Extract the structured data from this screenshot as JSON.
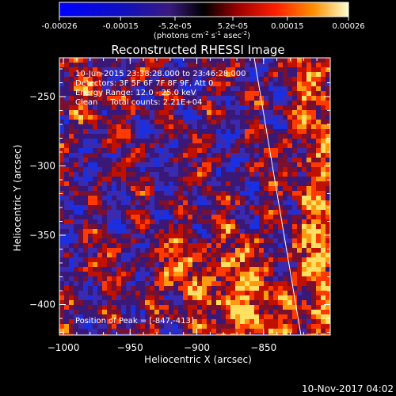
{
  "colorbar": {
    "ticks": [
      "-0.00026",
      "-0.00015",
      "-5.2e-05",
      "5.2e-05",
      "0.00015",
      "0.00026"
    ],
    "tick_values": [
      -0.00026,
      -0.00015,
      -5.2e-05,
      5.2e-05,
      0.00015,
      0.00026
    ],
    "range": [
      -0.00026,
      0.00026
    ],
    "units_prefix": "(photons cm",
    "units_exp1": "-2",
    "units_mid": " s",
    "units_exp2": "-1",
    "units_mid2": " asec",
    "units_exp3": "-2",
    "units_suffix": ")"
  },
  "chart_data": {
    "type": "heatmap",
    "title": "Reconstructed RHESSI Image",
    "xlabel": "Heliocentric X (arcsec)",
    "ylabel": "Heliocentric Y (arcsec)",
    "xlim": [
      -1003,
      -800
    ],
    "ylim": [
      -422,
      -222
    ],
    "xticks": [
      -1000,
      -950,
      -900,
      -850
    ],
    "xtick_labels": [
      "−1000",
      "−950",
      "−900",
      "−850"
    ],
    "yticks": [
      -250,
      -300,
      -350,
      -400
    ],
    "ytick_labels": [
      "−250",
      "−300",
      "−350",
      "−400"
    ],
    "annotations": [
      "10-Jun-2015 23:38:28.000 to 23:46:28.000",
      "Detectors: 3F 5F 6F 7F 8F 9F, Att 0",
      "Energy Range: 12.0 - 25.0 keV",
      "Clean     Total counts: 2.21E+04"
    ],
    "peak_label": "Position of Peak = [-847,-413]",
    "peak_position": [
      -847,
      -413
    ],
    "limb_line": [
      [
        -857,
        -222
      ],
      [
        -822,
        -422
      ]
    ]
  },
  "footer": {
    "date": "10-Nov-2017 04:02"
  }
}
